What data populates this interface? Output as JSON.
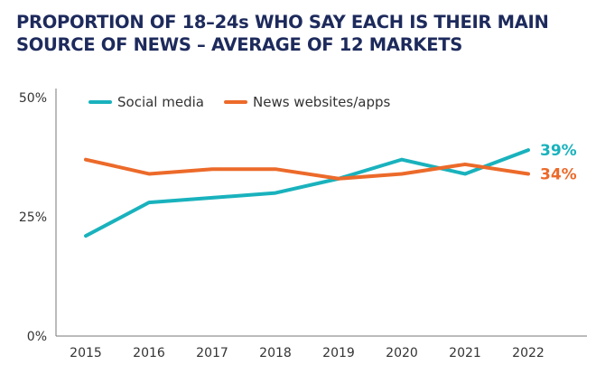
{
  "chart_data": {
    "type": "line",
    "title": "PROPORTION OF 18–24s WHO SAY EACH IS THEIR MAIN SOURCE OF NEWS – AVERAGE OF 12 MARKETS",
    "categories": [
      "2015",
      "2016",
      "2017",
      "2018",
      "2019",
      "2020",
      "2021",
      "2022"
    ],
    "y_ticks": [
      "0%",
      "25%",
      "50%"
    ],
    "ylim": [
      0,
      50
    ],
    "grid": false,
    "legend": "top",
    "series": [
      {
        "name": "Social media",
        "color": "#19b2bd",
        "values": [
          21,
          28,
          29,
          30,
          33,
          37,
          34,
          39
        ],
        "end_label": "39%"
      },
      {
        "name": "News websites/apps",
        "color": "#ec6a2a",
        "values": [
          37,
          34,
          35,
          35,
          33,
          34,
          36,
          34
        ],
        "end_label": "34%"
      }
    ]
  }
}
